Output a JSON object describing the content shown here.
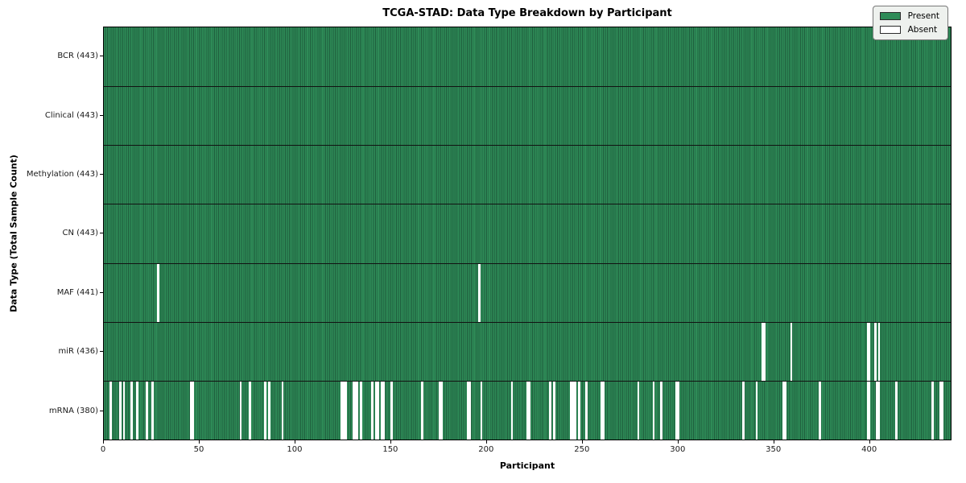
{
  "chart_data": {
    "type": "heatmap",
    "title": "TCGA-STAD: Data Type Breakdown by Participant",
    "xlabel": "Participant",
    "ylabel": "Data Type (Total Sample Count)",
    "n_participants": 443,
    "x_ticks": [
      "0",
      "50",
      "100",
      "150",
      "200",
      "250",
      "300",
      "350",
      "400"
    ],
    "x_tick_values": [
      0,
      50,
      100,
      150,
      200,
      250,
      300,
      350,
      400
    ],
    "legend_position": "upper right",
    "grid": "row separators only",
    "colors": {
      "present": "#2e8b57",
      "cell_edge": "#1f5e3d",
      "absent": "#ffffff",
      "row_separator": "#121212",
      "plot_border": "#000000",
      "legend_bg": "#eef1ee"
    },
    "legend": [
      {
        "label": "Present",
        "color": "#2e8b57"
      },
      {
        "label": "Absent",
        "color": "#ffffff"
      }
    ],
    "rows": [
      {
        "name": "BCR",
        "label": "BCR (443)",
        "present_count": 443,
        "absent_participants": []
      },
      {
        "name": "Clinical",
        "label": "Clinical (443)",
        "present_count": 443,
        "absent_participants": []
      },
      {
        "name": "Methylation",
        "label": "Methylation (443)",
        "present_count": 443,
        "absent_participants": []
      },
      {
        "name": "CN",
        "label": "CN (443)",
        "present_count": 443,
        "absent_participants": []
      },
      {
        "name": "MAF",
        "label": "MAF (441)",
        "present_count": 441,
        "absent_participants": [
          28,
          196
        ]
      },
      {
        "name": "miR",
        "label": "miR (436)",
        "present_count": 436,
        "absent_participants": [
          344,
          345,
          359,
          399,
          400,
          403,
          405
        ]
      },
      {
        "name": "mRNA",
        "label": "mRNA (380)",
        "present_count": 380,
        "absent_participants": [
          3,
          8,
          10,
          14,
          17,
          22,
          25,
          45,
          46,
          71,
          76,
          84,
          86,
          93,
          124,
          125,
          126,
          130,
          131,
          132,
          134,
          140,
          142,
          143,
          145,
          146,
          150,
          166,
          175,
          176,
          190,
          191,
          197,
          213,
          221,
          222,
          233,
          235,
          244,
          245,
          246,
          248,
          252,
          260,
          261,
          279,
          287,
          291,
          299,
          300,
          334,
          341,
          355,
          356,
          374,
          399,
          400,
          404,
          405,
          414,
          433,
          437,
          438
        ]
      }
    ]
  }
}
